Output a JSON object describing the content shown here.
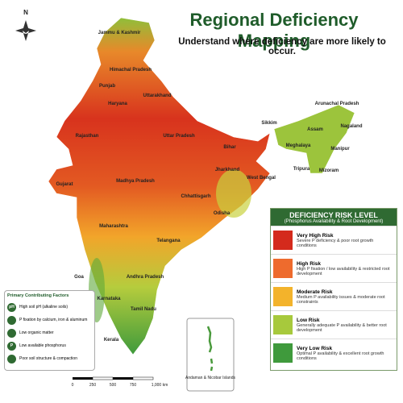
{
  "header": {
    "title": "Regional Deficiency Mapping",
    "subtitle": "Understand where deficiency are more likely to occur."
  },
  "compass": {
    "label": "N"
  },
  "map": {
    "regions": [
      "Jammu & Kashmir",
      "Himachal Pradesh",
      "Punjab",
      "Uttarakhand",
      "Haryana",
      "Rajasthan",
      "Uttar Pradesh",
      "Bihar",
      "Sikkim",
      "Arunachal Pradesh",
      "Assam",
      "Nagaland",
      "Meghalaya",
      "Manipur",
      "Tripura",
      "Mizoram",
      "Gujarat",
      "Madhya Pradesh",
      "Jharkhand",
      "West Bengal",
      "Chhattisgarh",
      "Odisha",
      "Maharashtra",
      "Telangana",
      "Goa",
      "Andhra Pradesh",
      "Karnataka",
      "Tamil Nadu",
      "Kerala"
    ],
    "islands_label": "Andaman & Nicobar Islands"
  },
  "legend": {
    "title": "DEFICIENCY RISK LEVEL",
    "subtitle": "(Phosphorus Availability & Root Development)",
    "items": [
      {
        "label": "Very High Risk",
        "description": "Severe P deficiency & poor root growth conditions",
        "color": "#d42a1c"
      },
      {
        "label": "High Risk",
        "description": "High P fixation / low availability & restricted root development",
        "color": "#ee6b2d"
      },
      {
        "label": "Moderate Risk",
        "description": "Medium P availability issues & moderate root constraints",
        "color": "#f3b32b"
      },
      {
        "label": "Low Risk",
        "description": "Generally adequate P availability & better root development",
        "color": "#a7c93c"
      },
      {
        "label": "Very Low Risk",
        "description": "Optimal P availability & excellent root growth conditions",
        "color": "#3f9a3c"
      }
    ]
  },
  "factors": {
    "title": "Primary Contributing Factors",
    "items": [
      {
        "icon": "pH",
        "label": "High soil pH (alkaline soils)"
      },
      {
        "label": "P fixation by calcium, iron & aluminum"
      },
      {
        "label": "Low organic matter"
      },
      {
        "icon": "P",
        "label": "Low available phosphorus"
      },
      {
        "label": "Poor soil structure & compaction"
      }
    ]
  },
  "scale_bar": {
    "ticks": [
      "0",
      "250",
      "500",
      "750",
      "1,000 km"
    ]
  }
}
